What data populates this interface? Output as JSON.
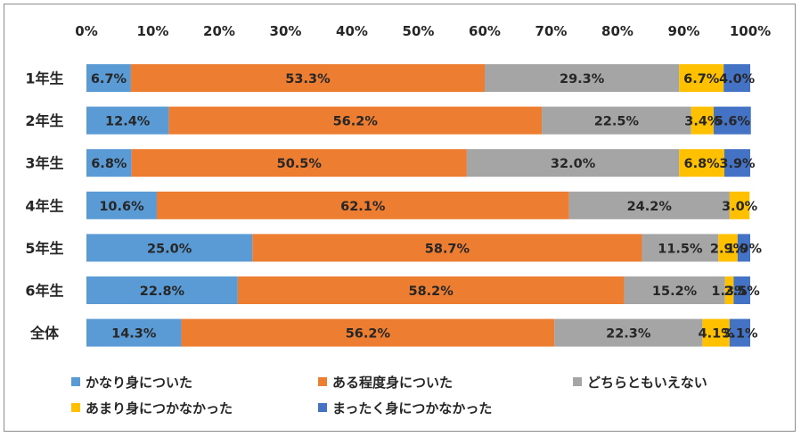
{
  "chart_data": {
    "type": "bar",
    "orientation": "horizontal",
    "stacked": "percent",
    "categories": [
      "1年生",
      "2年生",
      "3年生",
      "4年生",
      "5年生",
      "6年生",
      "全体"
    ],
    "x_ticks": [
      "0%",
      "10%",
      "20%",
      "30%",
      "40%",
      "50%",
      "60%",
      "70%",
      "80%",
      "90%",
      "100%"
    ],
    "xlim": [
      0,
      100
    ],
    "grid": false,
    "legend_position": "bottom",
    "series": [
      {
        "name": "かなり身についた",
        "color": "#5b9bd5",
        "values": [
          6.7,
          12.4,
          6.8,
          10.6,
          25.0,
          22.8,
          14.3
        ],
        "labels": [
          "6.7%",
          "12.4%",
          "6.8%",
          "10.6%",
          "25.0%",
          "22.8%",
          "14.3%"
        ]
      },
      {
        "name": "ある程度身についた",
        "color": "#ed7d31",
        "values": [
          53.3,
          56.2,
          50.5,
          62.1,
          58.7,
          58.2,
          56.2
        ],
        "labels": [
          "53.3%",
          "56.2%",
          "50.5%",
          "62.1%",
          "58.7%",
          "58.2%",
          "56.2%"
        ]
      },
      {
        "name": "どちらともいえない",
        "color": "#a5a5a5",
        "values": [
          29.3,
          22.5,
          32.0,
          24.2,
          11.5,
          15.2,
          22.3
        ],
        "labels": [
          "29.3%",
          "22.5%",
          "32.0%",
          "24.2%",
          "11.5%",
          "15.2%",
          "22.3%"
        ]
      },
      {
        "name": "あまり身につかなかった",
        "color": "#ffc000",
        "values": [
          6.7,
          3.4,
          6.8,
          3.0,
          2.9,
          1.3,
          4.1
        ],
        "labels": [
          "6.7%",
          "3.4%",
          "6.8%",
          "3.0%",
          "2.9%",
          "1.3%",
          "4.1%"
        ]
      },
      {
        "name": "まったく身につかなかった",
        "color": "#4472c4",
        "values": [
          4.0,
          5.6,
          3.9,
          0,
          1.9,
          2.5,
          3.1
        ],
        "labels": [
          "4.0%",
          "5.6%",
          "3.9%",
          "",
          "1.9%",
          "2.5%",
          "3.1%"
        ]
      }
    ]
  }
}
